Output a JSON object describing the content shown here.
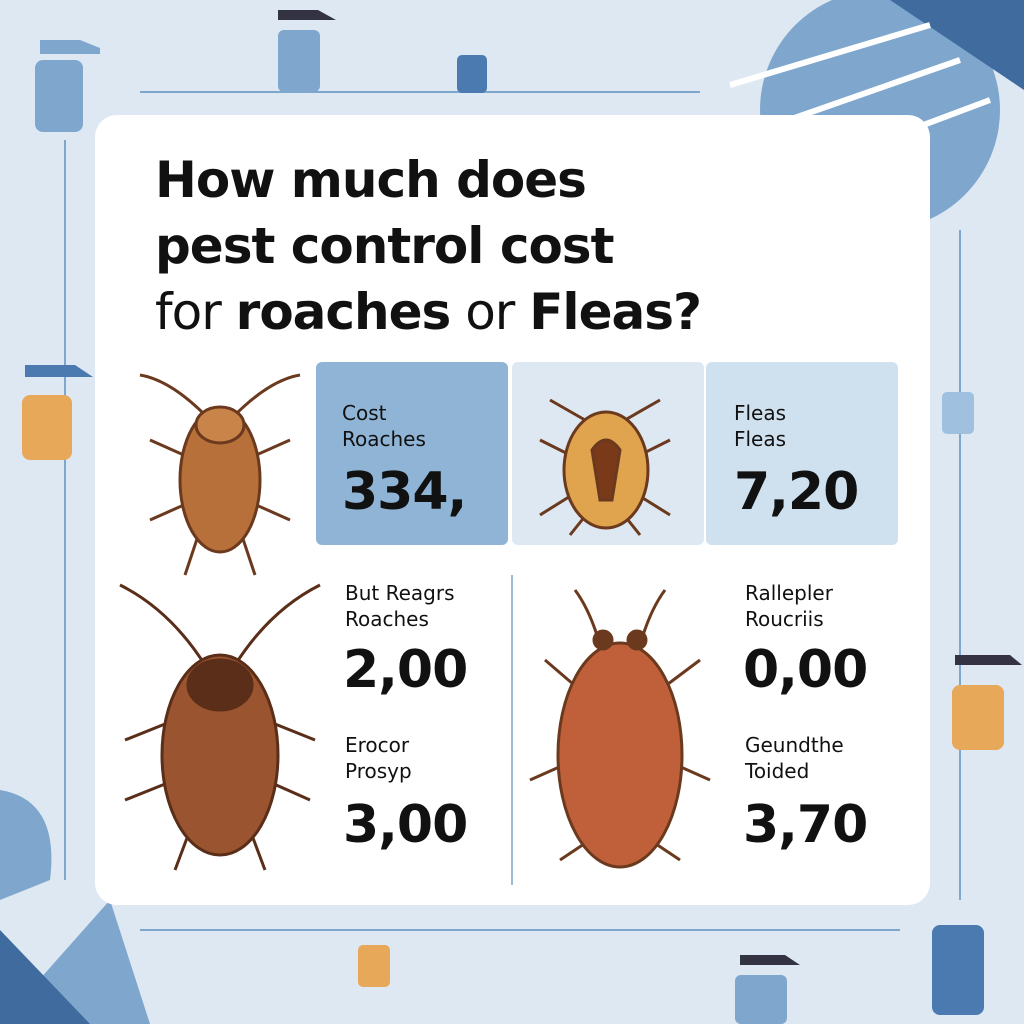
{
  "title": {
    "line1": "How much does",
    "line2": "pest control cost",
    "line3_prefix": "for",
    "line3_a": "roaches",
    "line3_mid": "or",
    "line3_b": "Fleas?"
  },
  "cards": [
    {
      "label1": "Cost",
      "label2": "Roaches",
      "value": "334,"
    },
    {
      "label1": "Fleas",
      "label2": "Fleas",
      "value": "7,20"
    }
  ],
  "items": [
    {
      "label1": "But Reagrs",
      "label2": "Roaches",
      "value": "2,00"
    },
    {
      "label1": "Rallepler",
      "label2": "Roucriis",
      "value": "0,00"
    },
    {
      "label1": "Erocor",
      "label2": "Prosyp",
      "value": "3,00"
    },
    {
      "label1": "Geundthe",
      "label2": "Toided",
      "value": "3,70"
    }
  ]
}
